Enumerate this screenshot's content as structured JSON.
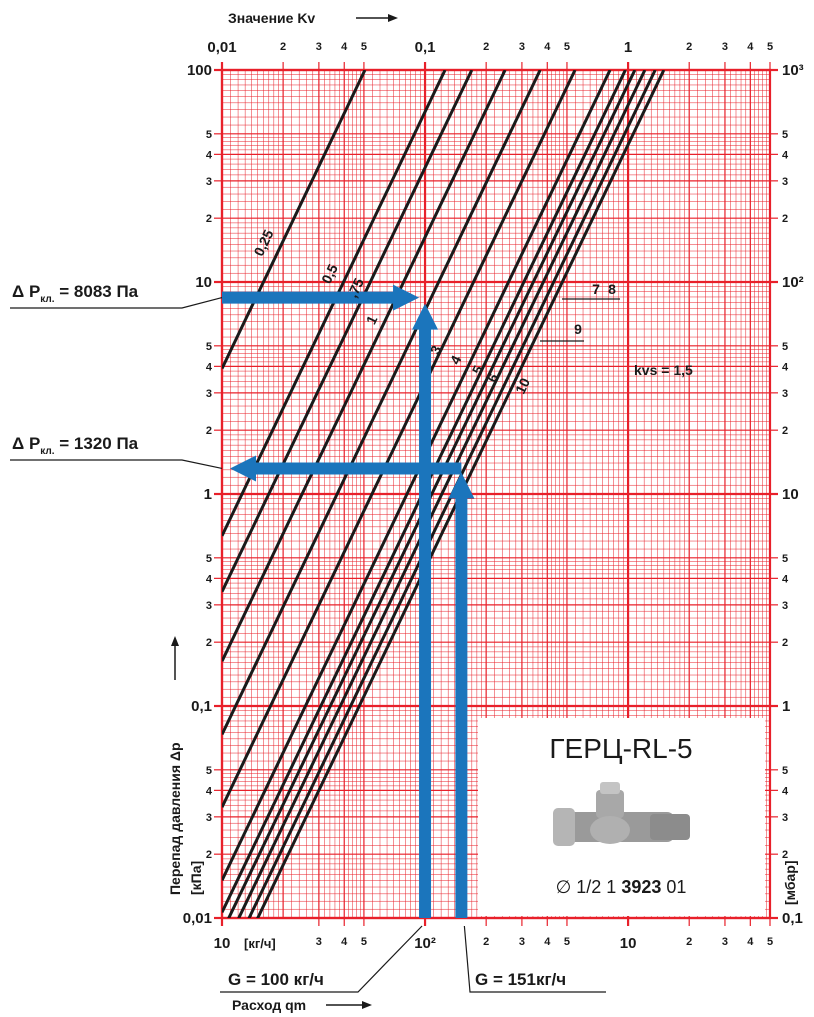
{
  "chart_data": {
    "type": "nomogram",
    "x_title": "Значение Kv",
    "x2_title": "Расход qm",
    "x2_unit": "[кг/ч]",
    "y_title": "Перепад давления Δp",
    "y_unit": "[кПа]",
    "y2_unit": "[мбар]",
    "log_x": true,
    "log_y": true,
    "grid": true,
    "grid_color": "#e8202a",
    "line_color": "#1a1a1a",
    "arrow_color": "#1b75bc",
    "xlim": [
      0.01,
      5
    ],
    "x2lim": [
      10,
      5000
    ],
    "ylim": [
      0.01,
      100
    ],
    "y2lim": [
      0.1,
      1000
    ],
    "xticks": [
      {
        "value": 0.01,
        "label": "0,01"
      },
      {
        "value": 0.02,
        "label": "2"
      },
      {
        "value": 0.03,
        "label": "3"
      },
      {
        "value": 0.04,
        "label": "4"
      },
      {
        "value": 0.05,
        "label": "5"
      },
      {
        "value": 0.1,
        "label": "0,1"
      },
      {
        "value": 0.2,
        "label": "2"
      },
      {
        "value": 0.3,
        "label": "3"
      },
      {
        "value": 0.4,
        "label": "4"
      },
      {
        "value": 0.5,
        "label": "5"
      },
      1,
      2,
      3,
      4,
      5
    ],
    "x2ticks": [
      10,
      {
        "value": 30,
        "label": "3"
      },
      {
        "value": 40,
        "label": "4"
      },
      {
        "value": 50,
        "label": "5"
      },
      {
        "value": 100,
        "label": "10²"
      },
      {
        "value": 200,
        "label": "2"
      },
      {
        "value": 300,
        "label": "3"
      },
      {
        "value": 400,
        "label": "4"
      },
      {
        "value": 500,
        "label": "5"
      },
      {
        "value": 1000,
        "label": "10"
      },
      {
        "value": 2000,
        "label": "2"
      },
      {
        "value": 3000,
        "label": "3"
      },
      {
        "value": 4000,
        "label": "4"
      },
      {
        "value": 5000,
        "label": "5"
      }
    ],
    "yticks": [
      100,
      {
        "value": 50,
        "label": "5"
      },
      {
        "value": 40,
        "label": "4"
      },
      {
        "value": 30,
        "label": "3"
      },
      {
        "value": 20,
        "label": "2"
      },
      10,
      5,
      4,
      3,
      2,
      1,
      {
        "value": 0.5,
        "label": "5"
      },
      {
        "value": 0.4,
        "label": "4"
      },
      {
        "value": 0.3,
        "label": "3"
      },
      {
        "value": 0.2,
        "label": "2"
      },
      {
        "value": 0.1,
        "label": "0,1"
      },
      {
        "value": 0.05,
        "label": "5"
      },
      {
        "value": 0.04,
        "label": "4"
      },
      {
        "value": 0.03,
        "label": "3"
      },
      {
        "value": 0.02,
        "label": "2"
      },
      {
        "value": 0.01,
        "label": "0,01"
      }
    ],
    "y2ticks": [
      {
        "value": 1000,
        "label": "10³"
      },
      {
        "value": 500,
        "label": "5"
      },
      {
        "value": 400,
        "label": "4"
      },
      {
        "value": 300,
        "label": "3"
      },
      {
        "value": 200,
        "label": "2"
      },
      {
        "value": 100,
        "label": "10²"
      },
      {
        "value": 50,
        "label": "5"
      },
      {
        "value": 40,
        "label": "4"
      },
      {
        "value": 30,
        "label": "3"
      },
      {
        "value": 20,
        "label": "2"
      },
      10,
      5,
      4,
      3,
      2,
      1,
      {
        "value": 0.5,
        "label": "5"
      },
      {
        "value": 0.4,
        "label": "4"
      },
      {
        "value": 0.3,
        "label": "3"
      },
      {
        "value": 0.2,
        "label": "2"
      },
      {
        "value": 0.1,
        "label": "0,1"
      }
    ],
    "series": [
      {
        "name": "0,25",
        "kv": 0.0506
      },
      {
        "name": "0,5",
        "kv": 0.1255
      },
      {
        "name": ",75",
        "kv": 0.17
      },
      {
        "name": "1",
        "kv": 0.248
      },
      {
        "name": "3",
        "kv": 0.369
      },
      {
        "name": "4",
        "kv": 0.548
      },
      {
        "name": "5",
        "kv": 0.815
      },
      {
        "name": "6",
        "kv": 0.97
      },
      {
        "name": "7",
        "kv": 1.08
      },
      {
        "name": "8",
        "kv": 1.21
      },
      {
        "name": "9",
        "kv": 1.36
      },
      {
        "name": "10",
        "kv": 1.5
      }
    ],
    "kvs_label": "kvs = 1,5",
    "readings": [
      {
        "flow": 100,
        "dp": 8.083,
        "flow_label": "G = 100 кг/ч",
        "dp_prefix": "Δ P",
        "dp_subscript": "кл.",
        "dp_label": " = 8083 Па"
      },
      {
        "flow": 151,
        "dp": 1.32,
        "flow_label": "G = 151кг/ч",
        "dp_prefix": "Δ P",
        "dp_subscript": "кл.",
        "dp_label": " = 1320 Па"
      }
    ],
    "product": {
      "title": "ГЕРЦ-RL-5",
      "code_start": "∅ 1/2  1 ",
      "code_bold": "3923",
      "code_end": " 01"
    }
  }
}
